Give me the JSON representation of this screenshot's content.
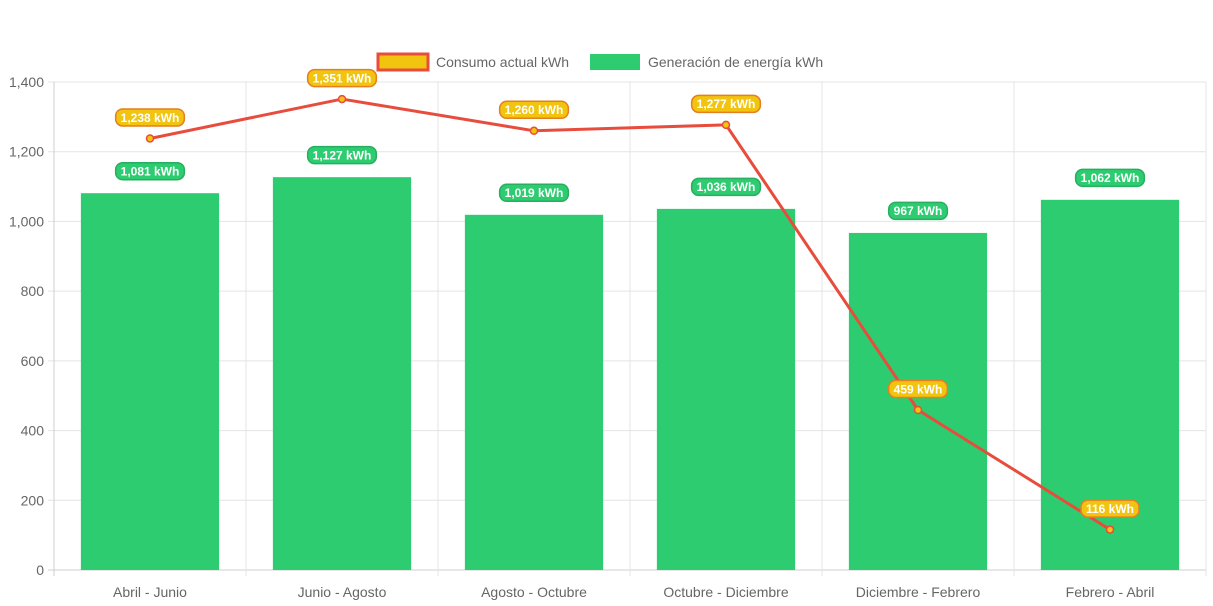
{
  "chart_data": {
    "type": "bar",
    "categories": [
      "Abril - Junio",
      "Junio - Agosto",
      "Agosto - Octubre",
      "Octubre - Diciembre",
      "Diciembre - Febrero",
      "Febrero - Abril"
    ],
    "series": [
      {
        "name": "Consumo actual kWh",
        "type": "line",
        "values": [
          1238,
          1351,
          1260,
          1277,
          459,
          116
        ],
        "labels": [
          "1,238 kWh",
          "1,351 kWh",
          "1,260 kWh",
          "1,277 kWh",
          "459 kWh",
          "116 kWh"
        ],
        "line_color": "#e74c3c",
        "fill_color": "#f1c40f"
      },
      {
        "name": "Generación de energía kWh",
        "type": "bar",
        "values": [
          1081,
          1127,
          1019,
          1036,
          967,
          1062
        ],
        "labels": [
          "1,081 kWh",
          "1,127 kWh",
          "1,019 kWh",
          "1,036 kWh",
          "967 kWh",
          "1,062 kWh"
        ],
        "color": "#2ecc71"
      }
    ],
    "ylim": [
      0,
      1400
    ],
    "yticks": [
      0,
      200,
      400,
      600,
      800,
      1000,
      1200,
      1400
    ],
    "ytick_labels": [
      "0",
      "200",
      "400",
      "600",
      "800",
      "1,000",
      "1,200",
      "1,400"
    ],
    "grid": true,
    "legend_position": "top"
  }
}
